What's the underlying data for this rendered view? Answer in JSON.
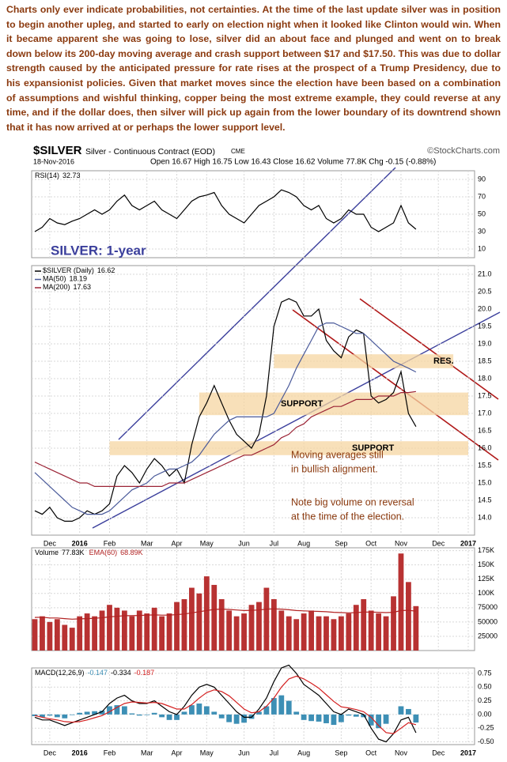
{
  "commentary": "Charts only ever indicate probabilities, not certainties. At the time of the last update silver was in position to begin another upleg, and started to early on election night when it looked like Clinton would win. When it became apparent she was going to lose, silver did an about face and plunged and went on to break down below its 200-day moving average and crash support between $17 and $17.50. This was due to dollar strength caused by the anticipated pressure for rate rises at the prospect of a Trump Presidency, due to his expansionist policies. Given that market moves since the election have been based on a combination of assumptions and wishful thinking, copper being the most extreme example, they could reverse at any time, and if the dollar does, then silver will pick up again from the lower boundary of its downtrend shown that it has now arrived at or perhaps the lower support level.",
  "header": {
    "symbol": "$SILVER",
    "name": "Silver - Continuous Contract (EOD)",
    "exchange": "CME",
    "source": "©StockCharts.com",
    "date": "18-Nov-2016",
    "quote": "Open 16.67 High 16.75 Low 16.43 Close 16.62 Volume 77.8K Chg -0.15 (-0.88%)"
  },
  "chart_data": [
    {
      "type": "line",
      "ylim": [
        0,
        100
      ],
      "yticks": [
        90,
        70,
        50,
        30,
        10
      ],
      "grid": true,
      "series": [
        {
          "name": "RSI(14)",
          "color": "#000000",
          "values": [
            30,
            35,
            45,
            40,
            38,
            42,
            45,
            50,
            55,
            50,
            55,
            65,
            72,
            60,
            55,
            60,
            65,
            55,
            50,
            45,
            55,
            65,
            70,
            72,
            75,
            60,
            50,
            45,
            40,
            50,
            60,
            65,
            70,
            78,
            75,
            70,
            60,
            55,
            60,
            45,
            40,
            45,
            55,
            50,
            50,
            35,
            30,
            35,
            40,
            60,
            40,
            32.73
          ]
        }
      ]
    },
    {
      "type": "line",
      "title": "SILVER: 1-year",
      "ylim": [
        13.5,
        21.25
      ],
      "grid": true,
      "yticks": [
        {
          "value": 14,
          "label": "14.0"
        },
        {
          "value": 14.5,
          "label": "14.5"
        },
        {
          "value": 15,
          "label": "15.0"
        },
        {
          "value": 15.5,
          "label": "15.5"
        },
        {
          "value": 16,
          "label": "16.0"
        },
        {
          "value": 16.5,
          "label": "16.5"
        },
        {
          "value": 17,
          "label": "17.0"
        },
        {
          "value": 17.5,
          "label": "17.5"
        },
        {
          "value": 18,
          "label": "18.0"
        },
        {
          "value": 18.5,
          "label": "18.5"
        },
        {
          "value": 19,
          "label": "19.0"
        },
        {
          "value": 19.5,
          "label": "19.5"
        },
        {
          "value": 20,
          "label": "20.0"
        },
        {
          "value": 20.5,
          "label": "20.5"
        },
        {
          "value": 21,
          "label": "21.0"
        }
      ],
      "categories": [
        null,
        null,
        "Dec",
        null,
        null,
        null,
        "2016",
        null,
        null,
        null,
        "Feb",
        null,
        null,
        null,
        null,
        "Mar",
        null,
        null,
        null,
        "Apr",
        null,
        null,
        null,
        "May",
        null,
        null,
        null,
        null,
        "Jun",
        null,
        null,
        null,
        "Jul",
        null,
        null,
        null,
        "Aug",
        null,
        null,
        null,
        null,
        "Sep",
        null,
        null,
        null,
        "Oct",
        null,
        null,
        null,
        "Nov",
        null,
        null,
        null,
        null,
        "Dec",
        null,
        null,
        null,
        "2017"
      ],
      "series": [
        {
          "name": "$SILVER (Daily)",
          "color": "#000000",
          "values": [
            14.2,
            14.1,
            14.3,
            14.0,
            13.9,
            13.9,
            14.0,
            14.2,
            14.1,
            14.2,
            14.4,
            15.2,
            15.5,
            15.3,
            15.0,
            15.4,
            15.7,
            15.5,
            15.2,
            15.4,
            15.0,
            16.1,
            16.9,
            17.3,
            17.8,
            17.3,
            16.8,
            16.4,
            16.2,
            16.0,
            16.4,
            17.5,
            19.5,
            20.2,
            20.3,
            20.2,
            19.8,
            19.8,
            20.0,
            19.1,
            18.8,
            18.6,
            19.2,
            19.4,
            19.3,
            17.5,
            17.3,
            17.4,
            17.6,
            18.2,
            17.0,
            16.62,
            null,
            null,
            null,
            null,
            null,
            null,
            null
          ]
        },
        {
          "name": "MA(50)",
          "color": "#4a5a9a",
          "values": [
            15.3,
            15.1,
            14.9,
            14.7,
            14.5,
            14.3,
            14.2,
            14.1,
            14.1,
            14.1,
            14.2,
            14.4,
            14.6,
            14.8,
            14.9,
            15.0,
            15.2,
            15.3,
            15.4,
            15.4,
            15.5,
            15.6,
            15.8,
            16.1,
            16.4,
            16.6,
            16.8,
            16.9,
            16.9,
            16.9,
            16.9,
            16.9,
            17.0,
            17.4,
            17.8,
            18.3,
            18.7,
            19.1,
            19.5,
            19.6,
            19.6,
            19.5,
            19.4,
            19.3,
            19.3,
            19.1,
            18.9,
            18.7,
            18.5,
            18.4,
            18.3,
            18.19,
            null,
            null,
            null,
            null,
            null,
            null,
            null
          ]
        },
        {
          "name": "MA(200)",
          "color": "#9b2335",
          "values": [
            15.6,
            15.5,
            15.4,
            15.3,
            15.2,
            15.1,
            15.0,
            15.0,
            14.9,
            14.9,
            14.9,
            14.9,
            14.9,
            14.9,
            14.9,
            14.9,
            14.9,
            14.9,
            15.0,
            15.0,
            15.0,
            15.1,
            15.2,
            15.3,
            15.4,
            15.5,
            15.6,
            15.7,
            15.8,
            15.8,
            15.9,
            16.0,
            16.1,
            16.3,
            16.4,
            16.6,
            16.7,
            16.9,
            17.0,
            17.1,
            17.2,
            17.2,
            17.3,
            17.4,
            17.4,
            17.4,
            17.5,
            17.5,
            17.5,
            17.6,
            17.6,
            17.63,
            null,
            null,
            null,
            null,
            null,
            null,
            null
          ]
        }
      ],
      "zones": [
        {
          "label": "RES.",
          "low": 18.3,
          "high": 18.7
        },
        {
          "label": "SUPPORT",
          "low": 16.95,
          "high": 17.6
        },
        {
          "label": "SUPPORT",
          "low": 15.8,
          "high": 16.2
        }
      ],
      "annotations": [
        "Moving averages still",
        "in bullish alignment.",
        "Note big volume on reversal",
        "at the time of the election."
      ]
    },
    {
      "type": "bar",
      "ylim": [
        0,
        180000
      ],
      "grid": true,
      "yticks": [
        {
          "value": 175000,
          "label": "175K"
        },
        {
          "value": 150000,
          "label": "150K"
        },
        {
          "value": 125000,
          "label": "125K"
        },
        {
          "value": 100000,
          "label": "100K"
        },
        75000,
        50000,
        25000
      ],
      "series": [
        {
          "name": "Volume",
          "color": "#b83232",
          "values": [
            55000,
            60000,
            50000,
            55000,
            45000,
            40000,
            60000,
            65000,
            60000,
            70000,
            80000,
            75000,
            70000,
            60000,
            70000,
            65000,
            75000,
            60000,
            65000,
            85000,
            90000,
            110000,
            100000,
            130000,
            115000,
            90000,
            70000,
            60000,
            65000,
            80000,
            85000,
            110000,
            90000,
            70000,
            60000,
            55000,
            65000,
            70000,
            60000,
            60000,
            55000,
            60000,
            65000,
            80000,
            90000,
            70000,
            65000,
            60000,
            95000,
            170000,
            120000,
            77830
          ],
          "value_labels": [
            null,
            null,
            null,
            null,
            null,
            null,
            null,
            null,
            null,
            null,
            null,
            null,
            null,
            null,
            null,
            null,
            null,
            null,
            null,
            null,
            null,
            null,
            null,
            null,
            null,
            null,
            null,
            null,
            null,
            null,
            null,
            null,
            null,
            null,
            null,
            null,
            null,
            null,
            null,
            null,
            null,
            null,
            null,
            null,
            null,
            null,
            null,
            null,
            null,
            null,
            null,
            "77.83K"
          ]
        },
        {
          "name": "EMA(60)",
          "type": "line",
          "color": "#b22222",
          "values": [
            58000,
            58500,
            57000,
            57000,
            56000,
            55000,
            55500,
            56000,
            56500,
            57500,
            59000,
            60000,
            61000,
            61000,
            61500,
            62000,
            62500,
            62000,
            62000,
            63000,
            64000,
            66000,
            68000,
            70000,
            72000,
            72500,
            72000,
            71000,
            70000,
            70500,
            71000,
            72500,
            73000,
            72500,
            71500,
            70000,
            69500,
            69000,
            68500,
            68000,
            67000,
            66500,
            66000,
            66500,
            67500,
            67500,
            67000,
            66500,
            67000,
            70000,
            70500,
            68890
          ],
          "value_labels": [
            null,
            null,
            null,
            null,
            null,
            null,
            null,
            null,
            null,
            null,
            null,
            null,
            null,
            null,
            null,
            null,
            null,
            null,
            null,
            null,
            null,
            null,
            null,
            null,
            null,
            null,
            null,
            null,
            null,
            null,
            null,
            null,
            null,
            null,
            null,
            null,
            null,
            null,
            null,
            null,
            null,
            null,
            null,
            null,
            null,
            null,
            null,
            null,
            null,
            null,
            null,
            "68.89K"
          ]
        }
      ]
    },
    {
      "type": "line",
      "label": "MACD(12,26,9)",
      "ylim": [
        -0.55,
        0.85
      ],
      "grid": true,
      "yticks": [
        0.75,
        {
          "value": 0.5,
          "label": "0.50"
        },
        0.25,
        {
          "value": 0,
          "label": "0.00"
        },
        -0.25,
        {
          "value": -0.5,
          "label": "-0.50"
        }
      ],
      "categories": [
        null,
        null,
        "Dec",
        null,
        null,
        null,
        "2016",
        null,
        null,
        null,
        "Feb",
        null,
        null,
        null,
        null,
        "Mar",
        null,
        null,
        null,
        "Apr",
        null,
        null,
        null,
        "May",
        null,
        null,
        null,
        null,
        "Jun",
        null,
        null,
        null,
        "Jul",
        null,
        null,
        null,
        "Aug",
        null,
        null,
        null,
        null,
        "Sep",
        null,
        null,
        null,
        "Oct",
        null,
        null,
        null,
        "Nov",
        null,
        null,
        null,
        null,
        "Dec",
        null,
        null,
        null,
        "2017"
      ],
      "series": [
        {
          "type": "bar",
          "color": "#3d8fb5",
          "values": [
            -0.03,
            -0.05,
            -0.02,
            -0.05,
            -0.07,
            -0.01,
            0.03,
            0.05,
            0.06,
            0.07,
            0.15,
            0.17,
            0.15,
            0.02,
            -0.02,
            -0.01,
            0.03,
            -0.05,
            -0.1,
            -0.1,
            0.05,
            0.17,
            0.2,
            0.15,
            0.05,
            -0.07,
            -0.14,
            -0.17,
            -0.15,
            -0.08,
            0.05,
            0.15,
            0.3,
            0.35,
            0.25,
            0.05,
            -0.1,
            -0.12,
            -0.13,
            -0.16,
            -0.19,
            -0.14,
            -0.02,
            -0.04,
            -0.05,
            -0.2,
            -0.25,
            -0.17,
            0,
            0.15,
            0.1,
            -0.147,
            null,
            null,
            null,
            null,
            null,
            null,
            null
          ]
        },
        {
          "color": "#000000",
          "values": [
            -0.05,
            -0.1,
            -0.1,
            -0.15,
            -0.2,
            -0.15,
            -0.1,
            -0.05,
            0,
            0.05,
            0.2,
            0.3,
            0.35,
            0.25,
            0.2,
            0.2,
            0.25,
            0.15,
            0.05,
            0,
            0.15,
            0.35,
            0.5,
            0.55,
            0.5,
            0.35,
            0.2,
            0.05,
            -0.05,
            -0.05,
            0.1,
            0.3,
            0.6,
            0.85,
            0.9,
            0.75,
            0.55,
            0.45,
            0.35,
            0.2,
            0.05,
            0,
            0.1,
            0.05,
            0,
            -0.25,
            -0.45,
            -0.5,
            -0.35,
            -0.1,
            -0.05,
            -0.334,
            null,
            null,
            null,
            null,
            null,
            null,
            null
          ]
        },
        {
          "color": "#d42020",
          "values": [
            -0.02,
            -0.05,
            -0.08,
            -0.1,
            -0.13,
            -0.14,
            -0.13,
            -0.1,
            -0.06,
            -0.02,
            0.05,
            0.13,
            0.2,
            0.23,
            0.22,
            0.21,
            0.22,
            0.2,
            0.15,
            0.1,
            0.1,
            0.18,
            0.3,
            0.4,
            0.45,
            0.42,
            0.34,
            0.22,
            0.1,
            0.03,
            0.05,
            0.15,
            0.3,
            0.5,
            0.65,
            0.7,
            0.65,
            0.57,
            0.48,
            0.36,
            0.24,
            0.14,
            0.12,
            0.09,
            0.05,
            -0.05,
            -0.2,
            -0.33,
            -0.35,
            -0.25,
            -0.15,
            -0.187,
            null,
            null,
            null,
            null,
            null,
            null,
            null
          ]
        }
      ]
    }
  ]
}
